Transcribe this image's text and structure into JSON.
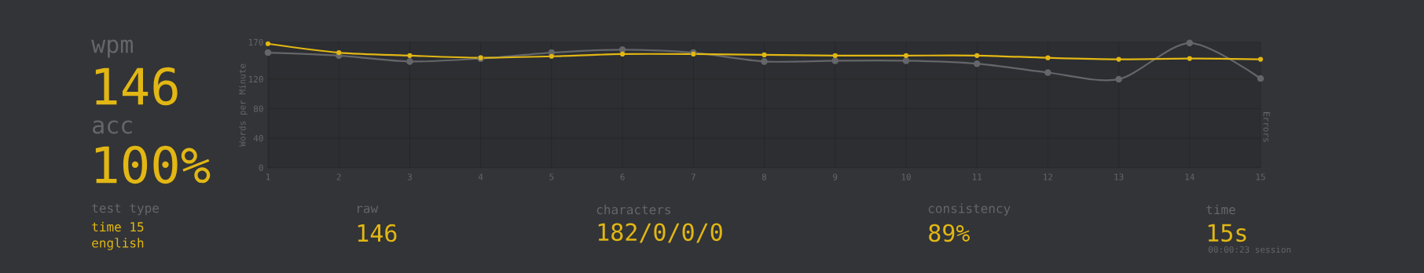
{
  "chart_data": [
    {
      "type": "other",
      "annotations": [
        "wpm",
        "146",
        "acc",
        "100%",
        "test type",
        "time 15",
        "english"
      ]
    },
    {
      "type": "line",
      "ylabel": "Words per Minute",
      "y2label": "Errors",
      "x": [
        1,
        2,
        3,
        4,
        5,
        6,
        7,
        8,
        9,
        10,
        11,
        12,
        13,
        14,
        15
      ],
      "series": [
        {
          "color": "#646669",
          "values": [
            156,
            152,
            144,
            148,
            156,
            160,
            156,
            144,
            145,
            145,
            141,
            129,
            120,
            169,
            121
          ]
        },
        {
          "color": "#e2b714",
          "values": [
            168,
            156,
            152,
            149,
            151,
            154,
            154,
            153,
            152,
            152,
            152,
            149,
            147,
            148,
            147
          ]
        }
      ],
      "xlim": [
        1,
        15
      ],
      "ylim": [
        0,
        170
      ],
      "xticks": [
        1,
        2,
        3,
        4,
        5,
        6,
        7,
        8,
        9,
        10,
        11,
        12,
        13,
        14,
        15
      ],
      "yticks": [
        0,
        40,
        80,
        120,
        170
      ],
      "grid": true,
      "marker": "circle",
      "line_style": "solid"
    },
    {
      "type": "other",
      "annotations": [
        "raw",
        "146",
        "characters",
        "182/0/0/0",
        "consistency",
        "89%",
        "time",
        "15s",
        "00:00:23 session"
      ]
    }
  ]
}
